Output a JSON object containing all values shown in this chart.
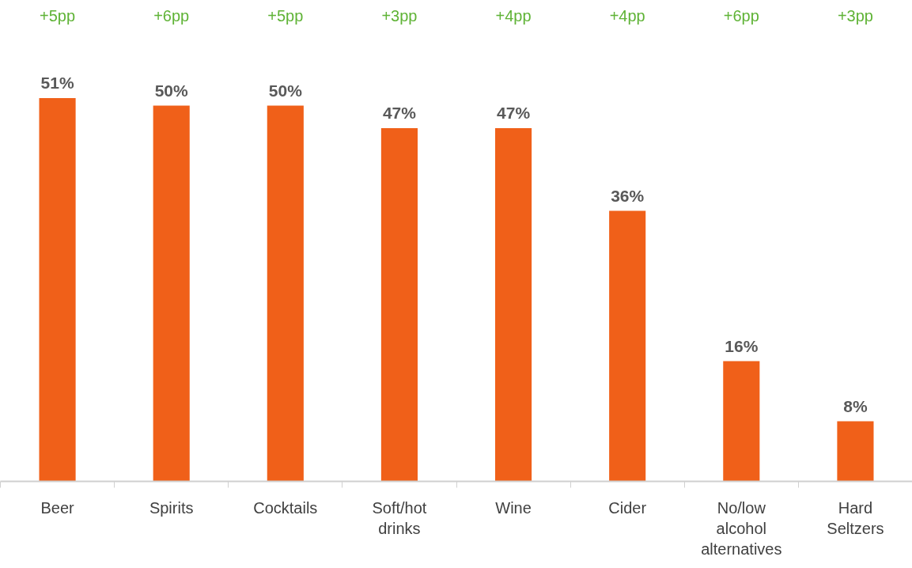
{
  "chart_data": {
    "type": "bar",
    "categories": [
      "Beer",
      "Spirits",
      "Cocktails",
      "Soft/hot\ndrinks",
      "Wine",
      "Cider",
      "No/low\nalcohol\nalternatives",
      "Hard\nSeltzers"
    ],
    "values": [
      51,
      50,
      50,
      47,
      47,
      36,
      16,
      8
    ],
    "color": "#f06019",
    "value_labels": [
      "51%",
      "50%",
      "50%",
      "47%",
      "47%",
      "36%",
      "16%",
      "8%"
    ],
    "grid": false,
    "annotations": [
      "+5pp",
      "+6pp",
      "+5pp",
      "+3pp",
      "+4pp",
      "+4pp",
      "+6pp",
      "+3pp"
    ]
  }
}
